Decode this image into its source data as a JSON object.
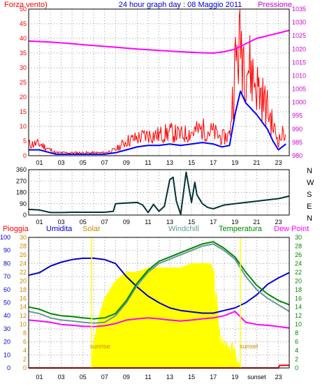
{
  "header": {
    "left_label": "Forza vento)",
    "title": "24 hour graph day : 08 Maggio 2011",
    "right_label": "Pressione"
  },
  "colors": {
    "wind_gust": "#ff0000",
    "wind_avg": "#0000ff",
    "pressure": "#ff00ff",
    "direction": "#003333",
    "rain": "#ff0000",
    "humidity": "#0000cc",
    "solar": "#ffff00",
    "windchill": "#669999",
    "temperature": "#008800",
    "dew_point": "#ff00ff",
    "annotation": "#cc8800"
  },
  "x_ticks": [
    "01",
    "03",
    "05",
    "07",
    "09",
    "11",
    "13",
    "15",
    "17",
    "19",
    "21",
    "23"
  ],
  "bottom_ticks": [
    "01",
    "03",
    "05",
    "07",
    "09",
    "11",
    "13",
    "15",
    "17",
    "19",
    "sunset",
    "23"
  ],
  "chart_data": [
    {
      "type": "line",
      "panel": "wind_pressure",
      "x_range": [
        0,
        24
      ],
      "y_left_ticks": [
        "0",
        "5",
        "10",
        "15",
        "20",
        "25",
        "30",
        "35",
        "40",
        "45",
        "50"
      ],
      "y_left_range": [
        0,
        50
      ],
      "y_right_ticks": [
        "980",
        "985",
        "990",
        "995",
        "1000",
        "1005",
        "1010",
        "1015",
        "1020",
        "1025",
        "1030",
        "1035"
      ],
      "y_right_range": [
        980,
        1035
      ],
      "grid": true,
      "series": [
        {
          "name": "Forza vento)",
          "axis": "left",
          "style": "spiky",
          "x": [
            0,
            1,
            2,
            2.5,
            4,
            6,
            7,
            8,
            9,
            10,
            11,
            12,
            13,
            14,
            15,
            16,
            17,
            17.8,
            18.5,
            19,
            19.5,
            20,
            21,
            22,
            22.5,
            23,
            23.7
          ],
          "y": [
            4,
            4,
            2,
            1,
            1,
            1,
            1,
            2,
            5,
            6,
            7,
            7,
            8,
            7,
            8,
            9,
            8,
            6,
            7,
            30,
            40,
            33,
            24,
            16,
            10,
            5,
            9
          ]
        },
        {
          "axis": "left",
          "style": "line",
          "x": [
            0,
            1,
            2,
            2.5,
            4,
            6,
            7,
            8,
            9,
            10,
            11,
            12,
            13,
            14,
            15,
            16,
            17,
            17.8,
            18.5,
            19,
            19.5,
            20,
            21,
            22,
            22.5,
            23,
            23.7
          ],
          "y": [
            2,
            2,
            1,
            0.5,
            0.5,
            0.5,
            0.5,
            1,
            2,
            3,
            3.5,
            3.5,
            4,
            3.5,
            4,
            4.5,
            4,
            3,
            3.5,
            14,
            22,
            18,
            14,
            9,
            5,
            2,
            4
          ]
        },
        {
          "name": "Pressione",
          "axis": "right",
          "style": "line",
          "x": [
            0,
            2,
            4,
            6,
            8,
            10,
            12,
            14,
            16,
            17,
            18,
            19,
            20,
            21,
            22,
            23,
            24
          ],
          "y": [
            1023,
            1022.6,
            1022,
            1021.3,
            1020.7,
            1020,
            1019.5,
            1019,
            1018.6,
            1018.5,
            1019,
            1020,
            1022,
            1024,
            1025,
            1026,
            1027
          ]
        }
      ]
    },
    {
      "type": "line",
      "panel": "wind_direction",
      "x_range": [
        0,
        24
      ],
      "y_ticks": [
        "0",
        "90",
        "180",
        "270",
        "360"
      ],
      "y_range": [
        0,
        360
      ],
      "compass_labels": [
        "N",
        "W",
        "S",
        "E",
        "N"
      ],
      "grid": true,
      "series": [
        {
          "x": [
            0,
            1,
            2,
            3,
            4,
            5,
            6,
            7,
            7.8,
            8,
            9,
            10,
            10.5,
            11,
            11.5,
            12,
            12.5,
            13,
            13.3,
            13.6,
            14,
            14.5,
            15,
            15.3,
            15.5,
            16,
            16.5,
            17,
            18,
            19,
            20,
            21,
            22,
            23,
            24
          ],
          "y": [
            45,
            40,
            20,
            20,
            22,
            22,
            22,
            22,
            30,
            90,
            95,
            100,
            80,
            20,
            85,
            30,
            70,
            280,
            300,
            110,
            5,
            340,
            100,
            260,
            160,
            90,
            60,
            50,
            80,
            90,
            100,
            110,
            120,
            130,
            150
          ]
        }
      ]
    },
    {
      "type": "line",
      "panel": "rain_humidity_solar_temp",
      "x_range": [
        0,
        24
      ],
      "legend": [
        "Pioggia",
        "Umidita",
        "Solar",
        "Windchill",
        "Temperatura",
        "Dew Point"
      ],
      "y_left_ticks": [
        "0",
        "10",
        "20",
        "30",
        "40",
        "50",
        "60",
        "70",
        "80",
        "90",
        "100"
      ],
      "y_left_range": [
        0,
        100
      ],
      "y_mid_ticks": [
        "0",
        "2",
        "4",
        "6",
        "8",
        "10",
        "12",
        "14",
        "16",
        "18",
        "20",
        "22",
        "24",
        "26",
        "28",
        "30"
      ],
      "y_mid_range": [
        0,
        30
      ],
      "y_right_ticks": [
        "0",
        "2",
        "4",
        "6",
        "8",
        "10",
        "12",
        "14",
        "16",
        "18",
        "20",
        "22",
        "24",
        "26",
        "28",
        "30"
      ],
      "y_right_range": [
        0,
        30
      ],
      "annotations": [
        {
          "text": "sunrise",
          "x": 5.8
        },
        {
          "text": "sunset",
          "x": 19.5
        }
      ],
      "grid": true,
      "series": [
        {
          "name": "Solar",
          "axis": "mid",
          "style": "area",
          "x": [
            5.8,
            6,
            6.5,
            7,
            8,
            9,
            10,
            11,
            12,
            13,
            14,
            15,
            16,
            16.5,
            16.8,
            17,
            17.5,
            18,
            18.5,
            19,
            19.5
          ],
          "y": [
            0,
            6,
            12,
            16,
            20,
            22,
            22,
            23,
            23,
            23,
            23,
            24,
            24,
            24,
            24,
            22,
            10,
            7,
            6,
            4,
            0
          ]
        },
        {
          "name": "Umidita",
          "axis": "left",
          "style": "line",
          "x": [
            0,
            1,
            2,
            3,
            4,
            5,
            6,
            7,
            8,
            9,
            10,
            11,
            12,
            13,
            14,
            15,
            16,
            17,
            18,
            19,
            20,
            21,
            22,
            23,
            24
          ],
          "y": [
            71,
            73,
            78,
            81,
            83,
            84,
            84,
            83,
            80,
            70,
            62,
            55,
            50,
            46,
            44,
            43,
            42,
            42,
            44,
            46,
            50,
            56,
            64,
            69,
            73
          ]
        },
        {
          "name": "Windchill",
          "axis": "right",
          "style": "line",
          "x": [
            0,
            1,
            2,
            3,
            4,
            5,
            6,
            7,
            8,
            9,
            10,
            11,
            12,
            13,
            14,
            15,
            16,
            17,
            18,
            19,
            20,
            21,
            22,
            23,
            24
          ],
          "y": [
            13,
            12.5,
            11.5,
            11,
            10.8,
            10.5,
            10.3,
            10.5,
            12,
            15,
            19,
            22,
            24,
            25,
            26,
            27,
            28,
            28.5,
            27,
            25,
            21,
            18,
            16,
            14.5,
            13
          ]
        },
        {
          "name": "Temperatura",
          "axis": "right",
          "style": "line",
          "x": [
            0,
            1,
            2,
            3,
            4,
            5,
            6,
            7,
            8,
            9,
            10,
            11,
            12,
            13,
            14,
            15,
            16,
            17,
            18,
            19,
            20,
            21,
            22,
            23,
            24
          ],
          "y": [
            14,
            13.5,
            12.5,
            12,
            11.8,
            11.5,
            11.3,
            11.5,
            12.5,
            15.5,
            19.5,
            22.5,
            24.5,
            25.5,
            26.5,
            27.5,
            28.5,
            29,
            27.5,
            25.5,
            22,
            19,
            17,
            15.5,
            14.5
          ]
        },
        {
          "name": "Dew Point",
          "axis": "right",
          "style": "line",
          "x": [
            0,
            1,
            2,
            3,
            4,
            5,
            6,
            7,
            8,
            9,
            10,
            11,
            12,
            13,
            14,
            15,
            16,
            17,
            18,
            19,
            20,
            21,
            22,
            23,
            24
          ],
          "y": [
            11,
            10.8,
            10.5,
            10,
            9.8,
            9.6,
            9.5,
            9.7,
            10.2,
            11,
            11.3,
            11.5,
            11.3,
            11,
            10.8,
            11,
            11.3,
            11.5,
            12,
            13,
            10.5,
            10,
            9.8,
            9.5,
            9.2
          ]
        },
        {
          "name": "Pioggia",
          "axis": "mid",
          "style": "line",
          "x": [
            0,
            23,
            23.1,
            24
          ],
          "y": [
            0,
            0,
            0.6,
            0.6
          ]
        }
      ]
    }
  ]
}
